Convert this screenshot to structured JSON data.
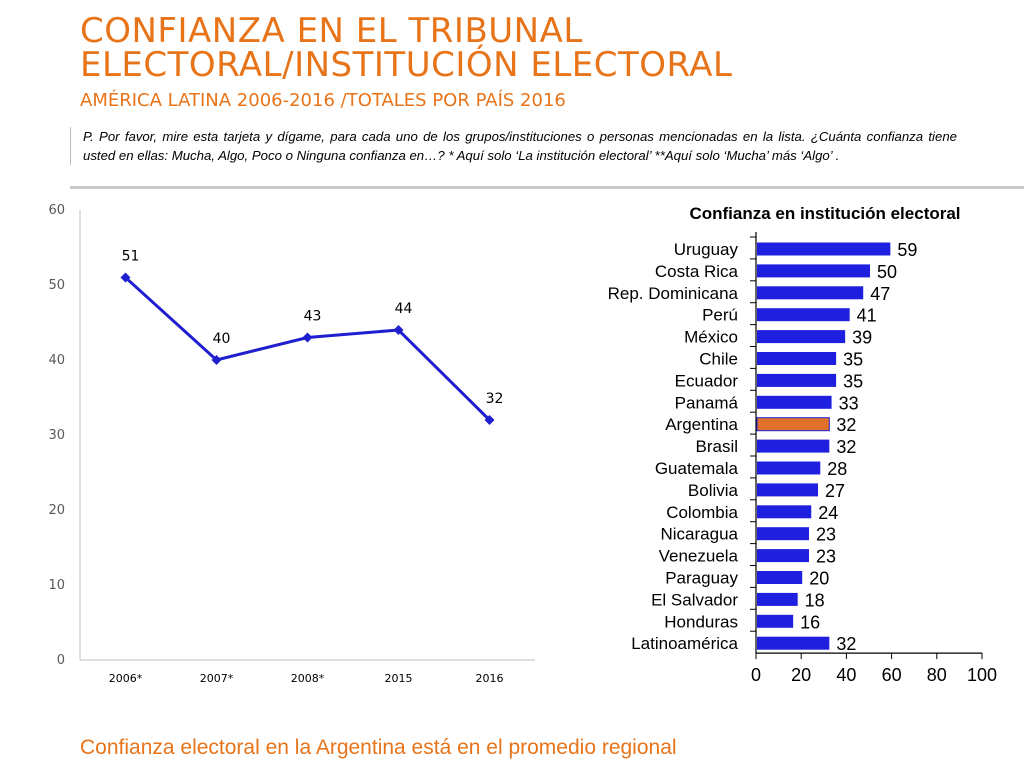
{
  "title": {
    "line1": "CONFIANZA EN EL TRIBUNAL",
    "line2": "ELECTORAL/INSTITUCIÓN ELECTORAL",
    "subtitle": "AMÉRICA LATINA 2006-2016 /TOTALES POR PAÍS 2016"
  },
  "question": "P. Por favor, mire esta tarjeta y dígame, para cada uno de los grupos/instituciones o personas mencionadas en la lista. ¿Cuánta confianza tiene usted en ellas: Mucha, Algo, Poco o Ninguna confianza en…? * Aquí solo ‘La institución electoral’  **Aquí solo ‘Mucha’ más ‘Algo’ .",
  "footer": "Confianza electoral en la Argentina está en el promedio regional",
  "colors": {
    "accent": "#E8741A",
    "line": "#1F1FCF",
    "bar": "#1F1FE0",
    "highlight_bar": "#E0702A"
  },
  "chart_data": [
    {
      "type": "line",
      "categories": [
        "2006*",
        "2007*",
        "2008*",
        "2015",
        "2016"
      ],
      "values": [
        51,
        40,
        43,
        44,
        32
      ],
      "ylim": [
        0,
        60
      ],
      "yticks": [
        0,
        10,
        20,
        30,
        40,
        50,
        60
      ],
      "grid": false,
      "data_labels": true
    },
    {
      "type": "bar",
      "orientation": "horizontal",
      "title": "Confianza en institución electoral",
      "categories": [
        "Uruguay",
        "Costa Rica",
        "Rep. Dominicana",
        "Perú",
        "México",
        "Chile",
        "Ecuador",
        "Panamá",
        "Argentina",
        "Brasil",
        "Guatemala",
        "Bolivia",
        "Colombia",
        "Nicaragua",
        "Venezuela",
        "Paraguay",
        "El Salvador",
        "Honduras",
        "Latinoamérica"
      ],
      "values": [
        59,
        50,
        47,
        41,
        39,
        35,
        35,
        33,
        32,
        32,
        28,
        27,
        24,
        23,
        23,
        20,
        18,
        16,
        32
      ],
      "highlight": "Argentina",
      "xlim": [
        0,
        100
      ],
      "xticks": [
        0,
        20,
        40,
        60,
        80,
        100
      ],
      "grid": false,
      "data_labels": true
    }
  ]
}
